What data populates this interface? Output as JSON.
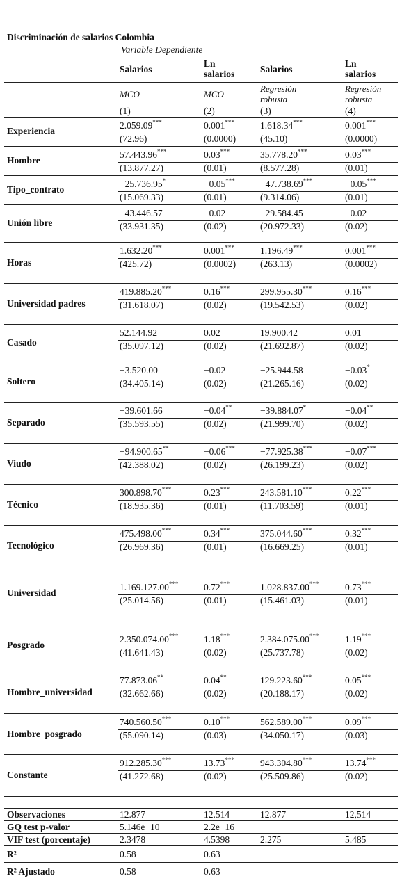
{
  "title": "Discriminación de salarios Colombia",
  "subtitle": "Variable Dependiente",
  "columns": {
    "dependent": [
      "Salarios",
      "Ln salarios",
      "Salarios",
      "Ln salarios"
    ],
    "method": [
      "MCO",
      "MCO",
      "Regresión robusta",
      "Regresión robusta"
    ],
    "number": [
      "(1)",
      "(2)",
      "(3)",
      "(4)"
    ]
  },
  "rows": [
    {
      "label": "Experiencia",
      "coef": [
        "2.059.09",
        "0.001",
        "1.618.34",
        "0.001"
      ],
      "stars": [
        "***",
        "***",
        "***",
        "***"
      ],
      "se": [
        "(72.96)",
        "(0.0000)",
        "(45.10)",
        "(0.0000)"
      ]
    },
    {
      "label": "Hombre",
      "coef": [
        "57.443.96",
        "0.03",
        "35.778.20",
        "0.03"
      ],
      "stars": [
        "***",
        "***",
        "***",
        "***"
      ],
      "se": [
        "(13.877.27)",
        "(0.01)",
        "(8.577.28)",
        "(0.01)"
      ]
    },
    {
      "label": "Tipo_contrato",
      "coef": [
        "−25.736.95",
        "−0.05",
        "−47.738.69",
        "−0.05"
      ],
      "stars": [
        "*",
        "***",
        "***",
        "***"
      ],
      "se": [
        "(15.069.33)",
        "(0.01)",
        "(9.314.06)",
        "(0.01)"
      ]
    },
    {
      "label": "Unión libre",
      "coef": [
        "−43.446.57",
        "−0.02",
        "−29.584.45",
        "−0.02"
      ],
      "stars": [
        null,
        null,
        null,
        null
      ],
      "se": [
        "(33.931.35)",
        "(0.02)",
        "(20.972.33)",
        "(0.02)"
      ]
    },
    {
      "label": "Horas",
      "coef": [
        "1.632.20",
        "0.001",
        "1.196.49",
        "0.001"
      ],
      "stars": [
        "***",
        "***",
        "***",
        "***"
      ],
      "se": [
        "(425.72)",
        "(0.0002)",
        "(263.13)",
        "(0.0002)"
      ]
    },
    {
      "label": "Universidad padres",
      "coef": [
        "419.885.20",
        "0.16",
        "299.955.30",
        "0.16"
      ],
      "stars": [
        "***",
        "***",
        "***",
        "***"
      ],
      "se": [
        "(31.618.07)",
        "(0.02)",
        "(19.542.53)",
        "(0.02)"
      ]
    },
    {
      "label": "Casado",
      "coef": [
        "52.144.92",
        "0.02",
        "19.900.42",
        "0.01"
      ],
      "stars": [
        null,
        null,
        null,
        null
      ],
      "se": [
        "(35.097.12)",
        "(0.02)",
        "(21.692.87)",
        "(0.02)"
      ]
    },
    {
      "label": "Soltero",
      "coef": [
        "−3.520.00",
        "−0.02",
        "−25.944.58",
        "−0.03"
      ],
      "stars": [
        null,
        null,
        null,
        "*"
      ],
      "se": [
        "(34.405.14)",
        "(0.02)",
        "(21.265.16)",
        "(0.02)"
      ]
    },
    {
      "label": "Separado",
      "coef": [
        "−39.601.66",
        "−0.04",
        "−39.884.07",
        "−0.04"
      ],
      "stars": [
        null,
        "**",
        "*",
        "**"
      ],
      "se": [
        "(35.593.55)",
        "(0.02)",
        "(21.999.70)",
        "(0.02)"
      ]
    },
    {
      "label": "Viudo",
      "coef": [
        "−94.900.65",
        "−0.06",
        "−77.925.38",
        "−0.07"
      ],
      "stars": [
        "**",
        "***",
        "***",
        "***"
      ],
      "se": [
        "(42.388.02)",
        "(0.02)",
        "(26.199.23)",
        "(0.02)"
      ]
    },
    {
      "label": "Técnico",
      "coef": [
        "300.898.70",
        "0.23",
        "243.581.10",
        "0.22"
      ],
      "stars": [
        "***",
        "***",
        "***",
        "***"
      ],
      "se": [
        "(18.935.36)",
        "(0.01)",
        "(11.703.59)",
        "(0.01)"
      ]
    },
    {
      "label": "Tecnológico",
      "coef": [
        "475.498.00",
        "0.34",
        "375.044.60",
        "0.32"
      ],
      "stars": [
        "***",
        "***",
        "***",
        "***"
      ],
      "se": [
        "(26.969.36)",
        "(0.01)",
        "(16.669.25)",
        "(0.01)"
      ]
    },
    {
      "label": "Universidad",
      "coef": [
        "1.169.127.00",
        "0.72",
        "1.028.837.00",
        "0.73"
      ],
      "stars": [
        "***",
        "***",
        "***",
        "***"
      ],
      "se": [
        "(25.014.56)",
        "(0.01)",
        "(15.461.03)",
        "(0.01)"
      ]
    },
    {
      "label": "Posgrado",
      "coef": [
        "2.350.074.00",
        "1.18",
        "2.384.075.00",
        "1.19"
      ],
      "stars": [
        "***",
        "***",
        "***",
        "***"
      ],
      "se": [
        "(41.641.43)",
        "(0.02)",
        "(25.737.78)",
        "(0.02)"
      ]
    },
    {
      "label": "Hombre_universidad",
      "coef": [
        "77.873.06",
        "0.04",
        "129.223.60",
        "0.05"
      ],
      "stars": [
        "**",
        "**",
        "***",
        "***"
      ],
      "se": [
        "(32.662.66)",
        "(0.02)",
        "(20.188.17)",
        "(0.02)"
      ]
    },
    {
      "label": "Hombre_posgrado",
      "coef": [
        "740.560.50",
        "0.10",
        "562.589.00",
        "0.09"
      ],
      "stars": [
        "***",
        "***",
        "***",
        "***"
      ],
      "se": [
        "(55.090.14)",
        "(0.03)",
        "(34.050.17)",
        "(0.03)"
      ]
    },
    {
      "label": "Constante",
      "coef": [
        "912.285.30",
        "13.73",
        "943.304.80",
        "13.74"
      ],
      "stars": [
        "***",
        "***",
        "***",
        "***"
      ],
      "se": [
        "(41.272.68)",
        "(0.02)",
        "(25.509.86)",
        "(0.02)"
      ]
    }
  ],
  "stats": [
    {
      "label": "Observaciones",
      "values": [
        "12.877",
        "12.514",
        "12.877",
        "12,514"
      ]
    },
    {
      "label": "GQ test p-valor",
      "values": [
        "5.146e−10",
        "2.2e−16",
        null,
        null
      ]
    },
    {
      "label": "VIF test (porcentaje)",
      "values": [
        "2.3478",
        "4.5398",
        "2.275",
        "5.485"
      ]
    },
    {
      "label": "R²",
      "values": [
        "0.58",
        "0.63",
        null,
        null
      ]
    },
    {
      "label": "R² Ajustado",
      "values": [
        "0.58",
        "0.63",
        null,
        null
      ]
    }
  ]
}
